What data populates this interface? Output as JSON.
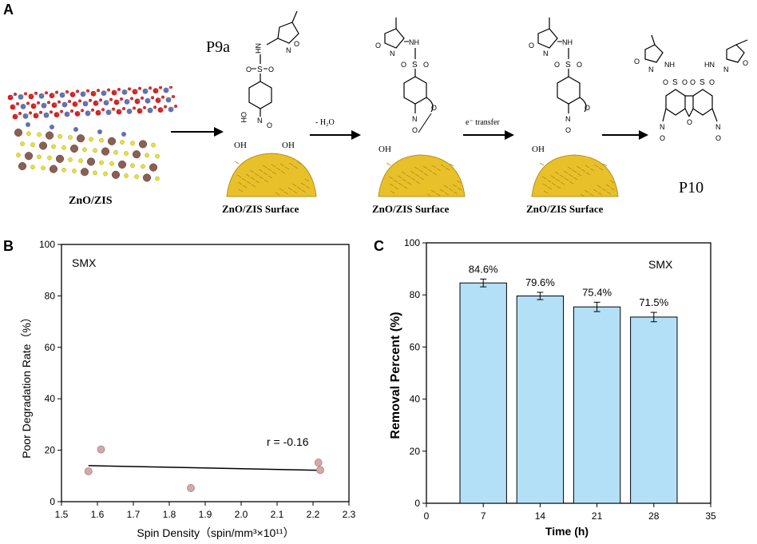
{
  "panels": {
    "a": {
      "letter": "A"
    },
    "b": {
      "letter": "B"
    },
    "c": {
      "letter": "C"
    }
  },
  "scheme": {
    "crystal_label": "ZnO/ZIS",
    "p9a_label": "P9a",
    "p10_label": "P10",
    "surface_label": "ZnO/ZIS Surface",
    "step1_label": "- H₂O",
    "step2_label": "e⁻ transfer",
    "oh": "OH",
    "nh": "NH",
    "hn": "HN",
    "o": "O",
    "n": "N",
    "s": "S",
    "colors": {
      "surface": "#e8c12a",
      "surface_dark": "#b8901a",
      "crystal_red": "#d32020",
      "crystal_blue": "#6070b0",
      "crystal_yellow": "#e6e23a",
      "crystal_brown": "#8a6055"
    }
  },
  "chart_data": [
    {
      "type": "scatter",
      "title": "",
      "annotation": "SMX",
      "correlation": "r = -0.16",
      "xlabel": "Spin Density（spin/mm³×10¹¹）",
      "ylabel": "Poor Degradation Rate（%）",
      "xlim": [
        1.5,
        2.3
      ],
      "ylim": [
        0,
        100
      ],
      "xticks": [
        "1.5",
        "1.6",
        "1.7",
        "1.8",
        "1.9",
        "2.0",
        "2.1",
        "2.2",
        "2.3"
      ],
      "yticks": [
        "0",
        "20",
        "40",
        "60",
        "80",
        "100"
      ],
      "points": [
        {
          "x": 1.575,
          "y": 11.8
        },
        {
          "x": 1.61,
          "y": 20.3
        },
        {
          "x": 1.86,
          "y": 5.3
        },
        {
          "x": 2.215,
          "y": 15.2
        },
        {
          "x": 2.22,
          "y": 12.3
        }
      ],
      "fit_line": {
        "x": [
          1.575,
          2.22
        ],
        "y": [
          14.0,
          12.2
        ]
      },
      "marker_color": "#d6a9a9",
      "grid": false
    },
    {
      "type": "bar",
      "title": "",
      "annotation": "SMX",
      "xlabel": "Time (h)",
      "ylabel": "Removal Percent (%)",
      "xlim": [
        0,
        35
      ],
      "ylim": [
        0,
        100
      ],
      "xticks": [
        "0",
        "7",
        "14",
        "21",
        "28",
        "35"
      ],
      "yticks": [
        "0",
        "20",
        "40",
        "60",
        "80",
        "100"
      ],
      "x": [
        7,
        14,
        21,
        28
      ],
      "values": [
        84.6,
        79.6,
        75.4,
        71.5
      ],
      "errors": [
        1.5,
        1.4,
        1.8,
        1.8
      ],
      "labels": [
        "84.6%",
        "79.6%",
        "75.4%",
        "71.5%"
      ],
      "bar_color": "#b3e0f7",
      "grid": false
    }
  ]
}
